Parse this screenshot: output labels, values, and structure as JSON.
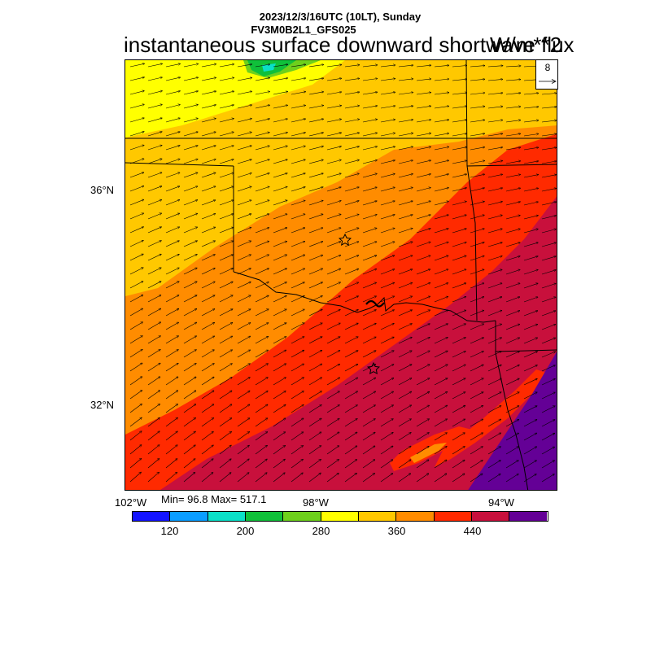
{
  "header": {
    "datetime": "2023/12/3/16UTC (10LT), Sunday",
    "model": "FV3M0B2L1_GFS025",
    "variable": "instantaneous surface downward shortwave flux",
    "unit": "W/m**2"
  },
  "stats": {
    "text": "Min= 96.8 Max= 517.1",
    "min": 96.8,
    "max": 517.1
  },
  "axes": {
    "lat_labels": [
      "36°N",
      "32°N"
    ],
    "lon_labels": [
      "102°W",
      "98°W",
      "94°W"
    ]
  },
  "reference_vector": {
    "label": "8"
  },
  "colorbar": {
    "colors": [
      "#1414ff",
      "#0a9dff",
      "#0ae0c8",
      "#10c03a",
      "#6ed01c",
      "#ffff00",
      "#ffc800",
      "#ff8c00",
      "#ff2a00",
      "#c8103c",
      "#640096"
    ],
    "tick_labels": [
      "120",
      "200",
      "280",
      "360",
      "440"
    ]
  },
  "map_features": {
    "markers": [
      "star-1",
      "star-2"
    ]
  }
}
